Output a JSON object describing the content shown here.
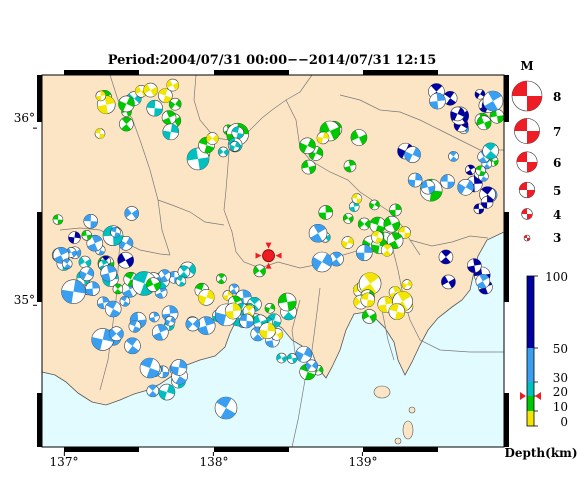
{
  "title": "Period:2004/07/31 00:00−−2014/07/31 12:15",
  "colors": {
    "land": "#fce5c5",
    "sea": "#e2fbff",
    "prefecture_border": "#7a7a7a",
    "coast": "#555555",
    "frame_black": "#000000",
    "sea_lines": "#7a7a7a",
    "marker": "#ee1c24"
  },
  "map": {
    "lon_range": [
      136.85,
      139.95
    ],
    "lat_range": [
      34.2,
      36.3
    ],
    "lon_labels": [
      "137°",
      "138°",
      "139°"
    ],
    "lat_labels": [
      "35°",
      "36°"
    ],
    "lon_ticks": [
      137,
      138,
      139
    ],
    "lat_ticks": [
      35,
      36
    ],
    "epicenter_marker": {
      "lon": 138.37,
      "lat": 35.28
    }
  },
  "magnitude_legend": {
    "title": "M",
    "items": [
      {
        "label": "8",
        "value": 8
      },
      {
        "label": "7",
        "value": 7
      },
      {
        "label": "6",
        "value": 6
      },
      {
        "label": "5",
        "value": 5
      },
      {
        "label": "4",
        "value": 4
      },
      {
        "label": "3",
        "value": 3
      }
    ]
  },
  "depth_colorbar": {
    "title": "Depth(km)",
    "ticks": [
      {
        "label": "100",
        "value": 100
      },
      {
        "label": "50",
        "value": 50
      },
      {
        "label": "30",
        "value": 30
      },
      {
        "label": "20",
        "value": 20
      },
      {
        "label": "10",
        "value": 10
      },
      {
        "label": "0",
        "value": 0
      }
    ],
    "bands": [
      {
        "from": 0,
        "to": 10,
        "color": "#f2e600"
      },
      {
        "from": 10,
        "to": 20,
        "color": "#00c800"
      },
      {
        "from": 20,
        "to": 30,
        "color": "#00bfbf"
      },
      {
        "from": 30,
        "to": 50,
        "color": "#3a9ff0"
      },
      {
        "from": 50,
        "to": 100,
        "color": "#0000a0"
      }
    ],
    "current_marker_value": 20
  }
}
